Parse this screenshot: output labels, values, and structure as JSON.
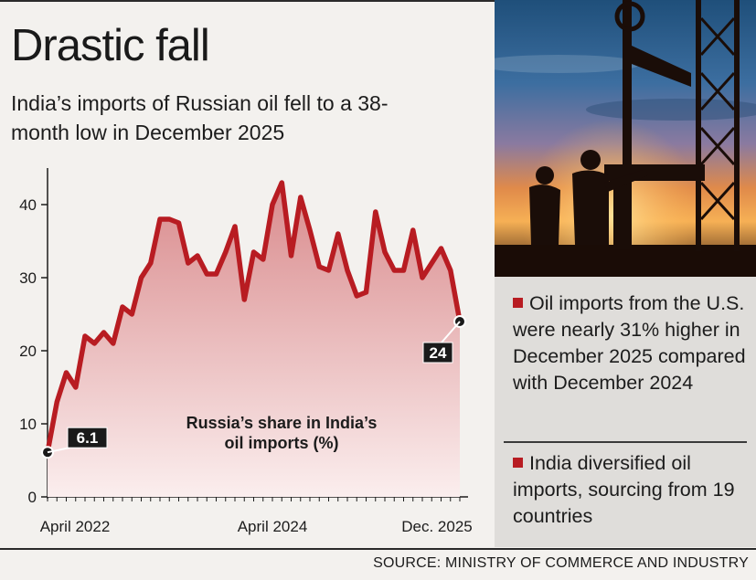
{
  "header": {
    "title": "Drastic fall",
    "subtitle": "India’s imports of Russian oil fell to a 38-month low in December 2025"
  },
  "colors": {
    "line": "#b81c22",
    "area_top": "#d98a8c",
    "area_bottom": "#fbeeee",
    "badge": "#1a1a1a"
  },
  "chart_data": {
    "type": "area",
    "title": "Russia’s share in India’s oil imports (%)",
    "ylim": [
      0,
      45
    ],
    "yticks": [
      0,
      10,
      20,
      30,
      40
    ],
    "x_tick_labels": [
      "April 2022",
      "April 2024",
      "Dec. 2025"
    ],
    "x_tick_months": [
      0,
      24,
      44
    ],
    "legend": "none",
    "grid": false,
    "series": [
      {
        "x": [
          0,
          1,
          2,
          3,
          4,
          5,
          6,
          7,
          8,
          9,
          10,
          11,
          12,
          13,
          14,
          15,
          16,
          17,
          18,
          19,
          20,
          21,
          22,
          23,
          24,
          25,
          26,
          27,
          28,
          29,
          30,
          31,
          32,
          33,
          34,
          35,
          36,
          37,
          38,
          39,
          40,
          41,
          42,
          43,
          44
        ],
        "values": [
          6.1,
          13,
          17,
          15,
          22,
          21,
          22.5,
          21,
          26,
          25,
          30,
          32,
          38,
          38,
          37.5,
          32,
          33,
          30.5,
          30.5,
          33.5,
          37,
          27,
          33.5,
          32.5,
          40,
          43,
          33,
          41,
          36.5,
          31.5,
          31,
          36,
          31,
          27.5,
          28,
          39,
          33.5,
          31,
          31,
          36.5,
          30,
          32,
          34,
          31,
          24
        ],
        "annotations": [
          {
            "index": 0,
            "label": "6.1"
          },
          {
            "index": 44,
            "label": "24"
          }
        ]
      }
    ]
  },
  "notes": [
    "Oil imports from the U.S. were nearly 31% higher in December 2025 compared with December 2024",
    "India diversified oil imports, sourcing from 19 countries"
  ],
  "photo": {
    "icon": "oil-pump-sunset-photo"
  },
  "footer": {
    "source": "SOURCE: MINISTRY OF COMMERCE AND INDUSTRY"
  }
}
